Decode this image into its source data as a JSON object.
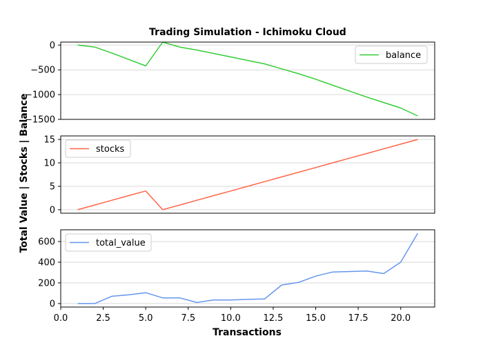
{
  "figure": {
    "title": "Trading Simulation - Ichimoku Cloud",
    "xlabel": "Transactions",
    "ylabel": "Total Value | Stocks | Balance"
  },
  "chart_data": [
    {
      "type": "line",
      "series": [
        {
          "name": "balance",
          "color": "#32cd32",
          "x": [
            1,
            2,
            3,
            4,
            5,
            6,
            7,
            8,
            9,
            10,
            11,
            12,
            13,
            14,
            15,
            16,
            17,
            18,
            19,
            20,
            21
          ],
          "values": [
            0,
            -40,
            -160,
            -290,
            -420,
            60,
            -40,
            -100,
            -170,
            -240,
            -310,
            -380,
            -480,
            -580,
            -690,
            -810,
            -930,
            -1050,
            -1160,
            -1270,
            -1430
          ]
        }
      ],
      "xlim": [
        0,
        22
      ],
      "ylim": [
        -1500,
        60
      ],
      "yticks": [
        0,
        -500,
        -1000,
        -1500
      ],
      "ytick_labels": [
        "0",
        "−500",
        "−1000",
        "−1500"
      ],
      "grid": true,
      "legend": "upper right"
    },
    {
      "type": "line",
      "series": [
        {
          "name": "stocks",
          "color": "#ff6347",
          "x": [
            1,
            2,
            3,
            4,
            5,
            6,
            7,
            8,
            9,
            10,
            11,
            12,
            13,
            14,
            15,
            16,
            17,
            18,
            19,
            20,
            21
          ],
          "values": [
            0,
            1,
            2,
            3,
            4,
            0,
            1,
            2,
            3,
            4,
            5,
            6,
            7,
            8,
            9,
            10,
            11,
            12,
            13,
            14,
            15
          ]
        }
      ],
      "xlim": [
        0,
        22
      ],
      "ylim": [
        -0.75,
        15.75
      ],
      "yticks": [
        0,
        5,
        10,
        15
      ],
      "ytick_labels": [
        "0",
        "5",
        "10",
        "15"
      ],
      "grid": true,
      "legend": "upper left"
    },
    {
      "type": "line",
      "series": [
        {
          "name": "total_value",
          "color": "#6495ed",
          "x": [
            1,
            2,
            3,
            4,
            5,
            6,
            7,
            8,
            9,
            10,
            11,
            12,
            13,
            14,
            15,
            16,
            17,
            18,
            19,
            20,
            21
          ],
          "values": [
            0,
            0,
            70,
            85,
            105,
            55,
            55,
            10,
            35,
            35,
            40,
            45,
            180,
            205,
            265,
            305,
            310,
            315,
            290,
            400,
            680
          ]
        }
      ],
      "xlim": [
        0,
        22
      ],
      "ylim": [
        -34,
        714
      ],
      "yticks": [
        0,
        200,
        400,
        600
      ],
      "ytick_labels": [
        "0",
        "200",
        "400",
        "600"
      ],
      "xticks": [
        0,
        2.5,
        5,
        7.5,
        10,
        12.5,
        15,
        17.5,
        20
      ],
      "xtick_labels": [
        "0.0",
        "2.5",
        "5.0",
        "7.5",
        "10.0",
        "12.5",
        "15.0",
        "17.5",
        "20.0"
      ],
      "grid": true,
      "legend": "upper left"
    }
  ]
}
